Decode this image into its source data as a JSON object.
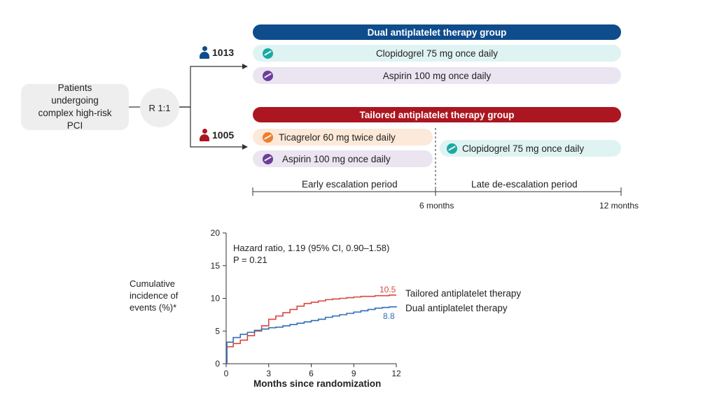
{
  "design": {
    "patients": "Patients undergoing complex high-risk PCI",
    "randomization": "R 1:1",
    "dual_group": {
      "title": "Dual antiplatelet therapy group",
      "count": "1013",
      "drugs": [
        "Clopidogrel 75 mg once daily",
        "Aspirin 100 mg once daily"
      ]
    },
    "tailored_group": {
      "title": "Tailored antiplatelet therapy group",
      "count": "1005",
      "early_drugs": [
        "Ticagrelor 60 mg twice daily",
        "Aspirin 100 mg once daily"
      ],
      "late_drug": "Clopidogrel 75 mg once daily"
    },
    "timeline": {
      "early_label": "Early escalation period",
      "late_label": "Late de-escalation period",
      "tick_6": "6 months",
      "tick_12": "12 months"
    },
    "colors": {
      "dual": "#0e4c8c",
      "tailored": "#ac1620",
      "clopidogrel": "#1aa9a3",
      "aspirin": "#6d3e9a",
      "ticagrelor": "#ee7f2d"
    },
    "icons": [
      "person-icon",
      "tablet-icon"
    ]
  },
  "chart_data": {
    "type": "line",
    "xlabel": "Months since randomization",
    "ylabel": "Cumulative incidence of events (%)*",
    "xlim": [
      0,
      12
    ],
    "ylim": [
      0,
      20
    ],
    "x_ticks": [
      0,
      3,
      6,
      9,
      12
    ],
    "y_ticks": [
      0,
      5,
      10,
      15,
      20
    ],
    "annotation": [
      "Hazard ratio, 1.19 (95% CI, 0.90–1.58)",
      "P = 0.21"
    ],
    "series": [
      {
        "name": "Tailored antiplatelet therapy",
        "color": "#d9463e",
        "end_label": "10.5",
        "x": [
          0,
          0.05,
          0.5,
          1,
          1.5,
          2,
          2.5,
          3,
          3.5,
          4,
          4.5,
          5,
          5.5,
          6,
          6.5,
          7,
          7.5,
          8,
          8.5,
          9,
          9.5,
          10,
          10.5,
          11,
          11.5,
          12
        ],
        "y": [
          0,
          2.6,
          3.1,
          3.6,
          4.3,
          5.0,
          5.8,
          6.8,
          7.3,
          7.8,
          8.3,
          8.8,
          9.2,
          9.4,
          9.6,
          9.8,
          9.9,
          10.0,
          10.1,
          10.2,
          10.3,
          10.3,
          10.4,
          10.4,
          10.5,
          10.5
        ]
      },
      {
        "name": "Dual antiplatelet therapy",
        "color": "#2e6db4",
        "end_label": "8.8",
        "x": [
          0,
          0.05,
          0.5,
          1,
          1.5,
          2,
          2.5,
          3,
          3.5,
          4,
          4.5,
          5,
          5.5,
          6,
          6.5,
          7,
          7.5,
          8,
          8.5,
          9,
          9.5,
          10,
          10.5,
          11,
          11.5,
          12
        ],
        "y": [
          0,
          3.3,
          4.0,
          4.5,
          4.8,
          5.1,
          5.3,
          5.5,
          5.6,
          5.8,
          6.0,
          6.2,
          6.4,
          6.6,
          6.8,
          7.1,
          7.3,
          7.5,
          7.7,
          7.9,
          8.1,
          8.3,
          8.5,
          8.6,
          8.7,
          8.8
        ]
      }
    ]
  }
}
